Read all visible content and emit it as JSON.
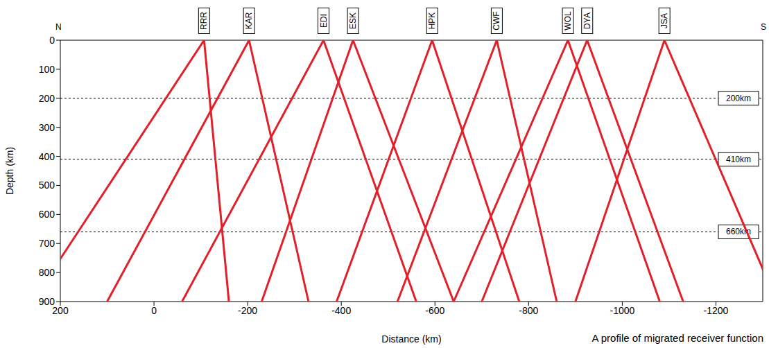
{
  "chart_data": {
    "type": "profile",
    "title": "A profile of migrated receiver function",
    "x_label": "Distance (km)",
    "y_label": "Depth (km)",
    "xlim": [
      200,
      -1300
    ],
    "xticks": [
      200,
      0,
      -200,
      -400,
      -600,
      -800,
      -1000,
      -1200
    ],
    "ylim": [
      0,
      900
    ],
    "yticks": [
      0,
      100,
      200,
      300,
      400,
      500,
      600,
      700,
      800,
      900
    ],
    "compass": {
      "left": "N",
      "right": "S"
    },
    "color": "#e0202a",
    "stations": [
      {
        "name": "RRR",
        "distance": -107,
        "cone": [
          260,
          -160
        ]
      },
      {
        "name": "KAR",
        "distance": -203,
        "cone": [
          100,
          -330
        ]
      },
      {
        "name": "EDI",
        "distance": -362,
        "cone": [
          -60,
          -560
        ]
      },
      {
        "name": "ESK",
        "distance": -425,
        "cone": [
          -230,
          -640
        ]
      },
      {
        "name": "HPK",
        "distance": -594,
        "cone": [
          -390,
          -780
        ]
      },
      {
        "name": "CWF",
        "distance": -732,
        "cone": [
          -520,
          -860
        ]
      },
      {
        "name": "WOL",
        "distance": -884,
        "cone": [
          -640,
          -1080
        ]
      },
      {
        "name": "DYA",
        "distance": -925,
        "cone": [
          -700,
          -1130
        ]
      },
      {
        "name": "JSA",
        "distance": -1090,
        "cone": [
          -900,
          -1330
        ]
      }
    ],
    "reference_lines": [
      {
        "depth": 200,
        "label": "200km"
      },
      {
        "depth": 410,
        "label": "410km"
      },
      {
        "depth": 660,
        "label": "660km"
      }
    ]
  }
}
